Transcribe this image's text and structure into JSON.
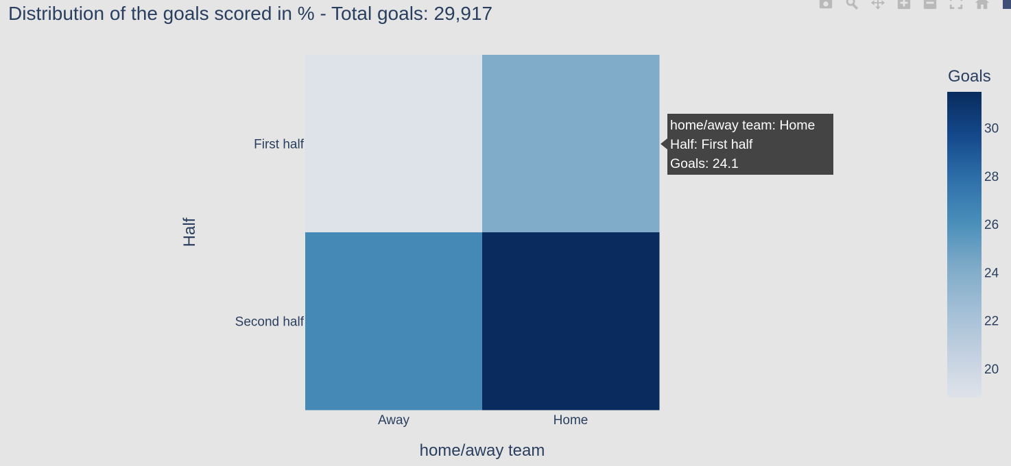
{
  "page": {
    "title": "Distribution of the goals scored in % - Total goals: 29,917"
  },
  "modebar": {
    "buttons": [
      "camera-icon",
      "zoom-icon",
      "pan-icon",
      "zoom-in-icon",
      "zoom-out-icon",
      "autoscale-icon",
      "reset-axes-icon"
    ]
  },
  "tooltip": {
    "line1": "home/away team: Home",
    "line2": "Half: First half",
    "line3": "Goals: 24.1"
  },
  "chart_data": {
    "type": "heatmap",
    "title": "Distribution of the goals scored in % - Total goals: 29,917",
    "xlabel": "home/away team",
    "ylabel": "Half",
    "x": [
      "Away",
      "Home"
    ],
    "y": [
      "First half",
      "Second half"
    ],
    "z": [
      [
        18.8,
        24.1
      ],
      [
        26.4,
        31.5
      ]
    ],
    "colorbar": {
      "title": "Goals",
      "range": [
        18.8,
        31.5
      ],
      "ticks": [
        20,
        22,
        24,
        26,
        28,
        30
      ],
      "colorscale": [
        "#dee3ea",
        "#c3d0e0",
        "#a2bfd6",
        "#7eaac8",
        "#4a8fba",
        "#2e6fa9",
        "#14498b",
        "#092b5e"
      ]
    },
    "grid": false,
    "legend": "none"
  }
}
